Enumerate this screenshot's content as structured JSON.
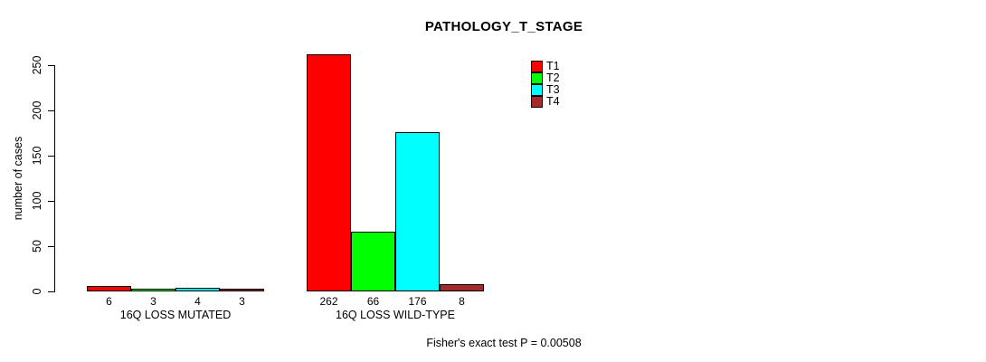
{
  "chart_data": {
    "type": "bar",
    "title": "PATHOLOGY_T_STAGE",
    "xlabel": "",
    "ylabel": "number of cases",
    "ylim": [
      0,
      262
    ],
    "yticks": [
      0,
      50,
      100,
      150,
      200,
      250
    ],
    "grid": false,
    "legend_position": "top-right-inside",
    "categories": [
      "16Q LOSS MUTATED",
      "16Q LOSS WILD-TYPE"
    ],
    "series": [
      {
        "name": "T1",
        "color": "#FF0000",
        "values": [
          6,
          262
        ]
      },
      {
        "name": "T2",
        "color": "#00FF00",
        "values": [
          3,
          66
        ]
      },
      {
        "name": "T3",
        "color": "#00FFFF",
        "values": [
          4,
          176
        ]
      },
      {
        "name": "T4",
        "color": "#A52A2A",
        "values": [
          3,
          8
        ]
      }
    ],
    "bar_value_labels": [
      [
        6,
        3,
        4,
        3
      ],
      [
        262,
        66,
        176,
        8
      ]
    ],
    "annotation": "Fisher's exact test P = 0.00508"
  }
}
